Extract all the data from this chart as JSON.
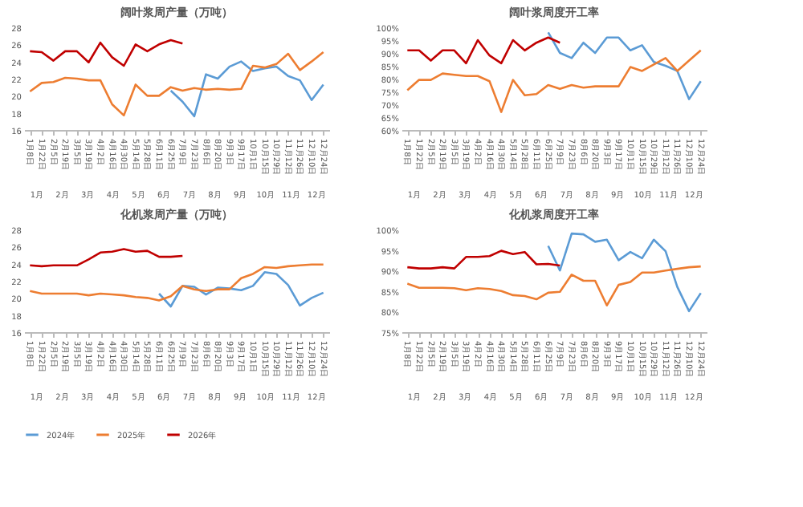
{
  "chart_data": [
    {
      "type": "line",
      "title": "阔叶浆周产量（万吨）",
      "categories": [
        "1月8日",
        "1月22日",
        "2月5日",
        "2月19日",
        "3月5日",
        "3月19日",
        "4月2日",
        "4月16日",
        "4月30日",
        "5月14日",
        "5月28日",
        "6月11日",
        "6月25日",
        "7月9日",
        "7月23日",
        "8月6日",
        "8月20日",
        "9月3日",
        "9月17日",
        "10月1日",
        "10月15日",
        "10月29日",
        "11月12日",
        "11月26日",
        "12月10日",
        "12月24日"
      ],
      "ylim": [
        16,
        28
      ],
      "yticks": [
        16,
        18,
        20,
        22,
        24,
        26,
        28
      ],
      "legend": "bottom",
      "annotations": [
        "1月",
        "2月",
        "3月",
        "4月",
        "5月",
        "6月",
        "7月",
        "8月",
        "9月",
        "10月",
        "11月",
        "12月"
      ],
      "series": [
        {
          "name": "2024年",
          "color": "#5b9bd5",
          "values": [
            null,
            null,
            null,
            null,
            null,
            null,
            null,
            null,
            null,
            null,
            null,
            null,
            20.6,
            19.3,
            17.6,
            22.5,
            22.0,
            23.4,
            24.0,
            22.9,
            23.2,
            23.4,
            22.3,
            21.8,
            19.5,
            21.3
          ]
        },
        {
          "name": "2025年",
          "color": "#ed7d31",
          "values": [
            20.5,
            21.5,
            21.6,
            22.1,
            22.0,
            21.8,
            21.8,
            19.0,
            17.7,
            21.3,
            20.0,
            20.0,
            21.0,
            20.6,
            20.9,
            20.7,
            20.8,
            20.7,
            20.8,
            23.5,
            23.3,
            23.7,
            24.9,
            23.0,
            24.0,
            25.1
          ]
        },
        {
          "name": "2026年",
          "color": "#c00000",
          "values": [
            25.2,
            25.1,
            24.1,
            25.2,
            25.2,
            23.9,
            26.2,
            24.5,
            23.5,
            26.0,
            25.2,
            26.0,
            26.5,
            26.1,
            null,
            null,
            null,
            null,
            null,
            null,
            null,
            null,
            null,
            null,
            null,
            null
          ]
        }
      ]
    },
    {
      "type": "line",
      "title": "阔叶浆周度开工率",
      "categories": [
        "1月8日",
        "1月22日",
        "2月5日",
        "2月19日",
        "3月5日",
        "3月19日",
        "4月2日",
        "4月16日",
        "4月30日",
        "5月14日",
        "5月28日",
        "6月11日",
        "6月25日",
        "7月9日",
        "7月23日",
        "8月6日",
        "8月20日",
        "9月3日",
        "9月17日",
        "10月1日",
        "10月15日",
        "10月29日",
        "11月12日",
        "11月26日",
        "12月10日",
        "12月24日"
      ],
      "ylim": [
        60,
        100
      ],
      "yticks": [
        {
          "value": 60,
          "label": "60%"
        },
        {
          "value": 65,
          "label": "65%"
        },
        {
          "value": 70,
          "label": "70%"
        },
        {
          "value": 75,
          "label": "75%"
        },
        {
          "value": 80,
          "label": "80%"
        },
        {
          "value": 85,
          "label": "85%"
        },
        {
          "value": 90,
          "label": "90%"
        },
        {
          "value": 95,
          "label": "95%"
        },
        {
          "value": 100,
          "label": "100%"
        }
      ],
      "legend": "bottom",
      "annotations": [
        "1月",
        "2月",
        "3月",
        "4月",
        "5月",
        "6月",
        "7月",
        "8月",
        "9月",
        "10月",
        "11月",
        "12月"
      ],
      "series": [
        {
          "name": "2024年",
          "color": "#5b9bd5",
          "values": [
            null,
            null,
            null,
            null,
            null,
            null,
            null,
            null,
            null,
            null,
            null,
            null,
            98,
            90,
            88,
            94,
            90,
            96,
            96,
            91,
            93,
            86.5,
            85,
            83,
            72,
            79
          ]
        },
        {
          "name": "2025年",
          "color": "#ed7d31",
          "values": [
            75.5,
            79.5,
            79.5,
            82,
            81.5,
            81,
            81,
            79,
            67,
            79.5,
            73.5,
            74,
            77.5,
            76,
            77.5,
            76.5,
            77,
            77,
            77,
            84.5,
            83,
            85.5,
            88,
            83,
            87,
            91
          ]
        },
        {
          "name": "2026年",
          "color": "#c00000",
          "values": [
            91,
            91,
            87,
            91,
            91,
            86,
            95,
            89,
            86,
            95,
            91,
            94,
            96,
            94,
            null,
            null,
            null,
            null,
            null,
            null,
            null,
            null,
            null,
            null,
            null,
            null
          ]
        }
      ]
    },
    {
      "type": "line",
      "title": "化机浆周产量（万吨）",
      "categories": [
        "1月8日",
        "1月22日",
        "2月5日",
        "2月19日",
        "3月5日",
        "3月19日",
        "4月2日",
        "4月16日",
        "4月30日",
        "5月14日",
        "5月28日",
        "6月11日",
        "6月25日",
        "7月9日",
        "7月23日",
        "8月6日",
        "8月20日",
        "9月3日",
        "9月17日",
        "10月1日",
        "10月15日",
        "10月29日",
        "11月12日",
        "11月26日",
        "12月10日",
        "12月24日"
      ],
      "ylim": [
        16,
        28
      ],
      "yticks": [
        16,
        18,
        20,
        22,
        24,
        26,
        28
      ],
      "legend": "bottom",
      "annotations": [
        "1月",
        "2月",
        "3月",
        "4月",
        "5月",
        "6月",
        "7月",
        "8月",
        "9月",
        "10月",
        "11月",
        "12月"
      ],
      "series": [
        {
          "name": "2024年",
          "color": "#5b9bd5",
          "values": [
            null,
            null,
            null,
            null,
            null,
            null,
            null,
            null,
            null,
            null,
            null,
            20.5,
            19.0,
            21.4,
            21.3,
            20.4,
            21.2,
            21.1,
            20.9,
            21.4,
            23.0,
            22.8,
            21.5,
            19.1,
            20.0,
            20.6
          ]
        },
        {
          "name": "2025年",
          "color": "#ed7d31",
          "values": [
            20.8,
            20.5,
            20.5,
            20.5,
            20.5,
            20.3,
            20.5,
            20.4,
            20.3,
            20.1,
            20.0,
            19.7,
            20.2,
            21.4,
            21.0,
            20.8,
            21.0,
            21.0,
            22.3,
            22.8,
            23.6,
            23.5,
            23.7,
            23.8,
            23.9,
            23.9
          ]
        },
        {
          "name": "2026年",
          "color": "#c00000",
          "values": [
            23.8,
            23.7,
            23.8,
            23.8,
            23.8,
            24.5,
            25.3,
            25.4,
            25.7,
            25.4,
            25.5,
            24.8,
            24.8,
            24.9,
            null,
            null,
            null,
            null,
            null,
            null,
            null,
            null,
            null,
            null,
            null,
            null
          ]
        }
      ]
    },
    {
      "type": "line",
      "title": "化机浆周度开工率",
      "categories": [
        "1月8日",
        "1月22日",
        "2月5日",
        "2月19日",
        "3月5日",
        "3月19日",
        "4月2日",
        "4月16日",
        "4月30日",
        "5月14日",
        "5月28日",
        "6月11日",
        "6月25日",
        "7月9日",
        "7月23日",
        "8月6日",
        "8月20日",
        "9月3日",
        "9月17日",
        "10月1日",
        "10月15日",
        "10月29日",
        "11月12日",
        "11月26日",
        "12月10日",
        "12月24日"
      ],
      "ylim": [
        75,
        100
      ],
      "yticks": [
        {
          "value": 75,
          "label": "75%"
        },
        {
          "value": 80,
          "label": "80%"
        },
        {
          "value": 85,
          "label": "85%"
        },
        {
          "value": 90,
          "label": "90%"
        },
        {
          "value": 95,
          "label": "95%"
        },
        {
          "value": 100,
          "label": "100%"
        }
      ],
      "legend": "bottom",
      "annotations": [
        "1月",
        "2月",
        "3月",
        "4月",
        "5月",
        "6月",
        "7月",
        "8月",
        "9月",
        "10月",
        "11月",
        "12月"
      ],
      "series": [
        {
          "name": "2024年",
          "color": "#5b9bd5",
          "values": [
            null,
            null,
            null,
            null,
            null,
            null,
            null,
            null,
            null,
            null,
            null,
            null,
            96,
            90,
            99,
            98.8,
            97,
            97.5,
            92.5,
            94.5,
            93,
            97.5,
            94.7,
            86,
            80.1,
            84.5
          ]
        },
        {
          "name": "2025年",
          "color": "#ed7d31",
          "values": [
            86.8,
            85.8,
            85.8,
            85.8,
            85.7,
            85.2,
            85.7,
            85.5,
            85.0,
            84.0,
            83.8,
            83.0,
            84.6,
            84.8,
            89.0,
            87.5,
            87.5,
            81.5,
            86.5,
            87.2,
            89.5,
            89.5,
            90.0,
            90.4,
            90.8,
            91.0
          ]
        },
        {
          "name": "2026年",
          "color": "#c00000",
          "values": [
            90.8,
            90.5,
            90.5,
            90.8,
            90.5,
            93.3,
            93.3,
            93.5,
            94.8,
            94.0,
            94.5,
            91.5,
            91.6,
            91.2,
            null,
            null,
            null,
            null,
            null,
            null,
            null,
            null,
            null,
            null,
            null,
            null
          ]
        }
      ]
    }
  ]
}
